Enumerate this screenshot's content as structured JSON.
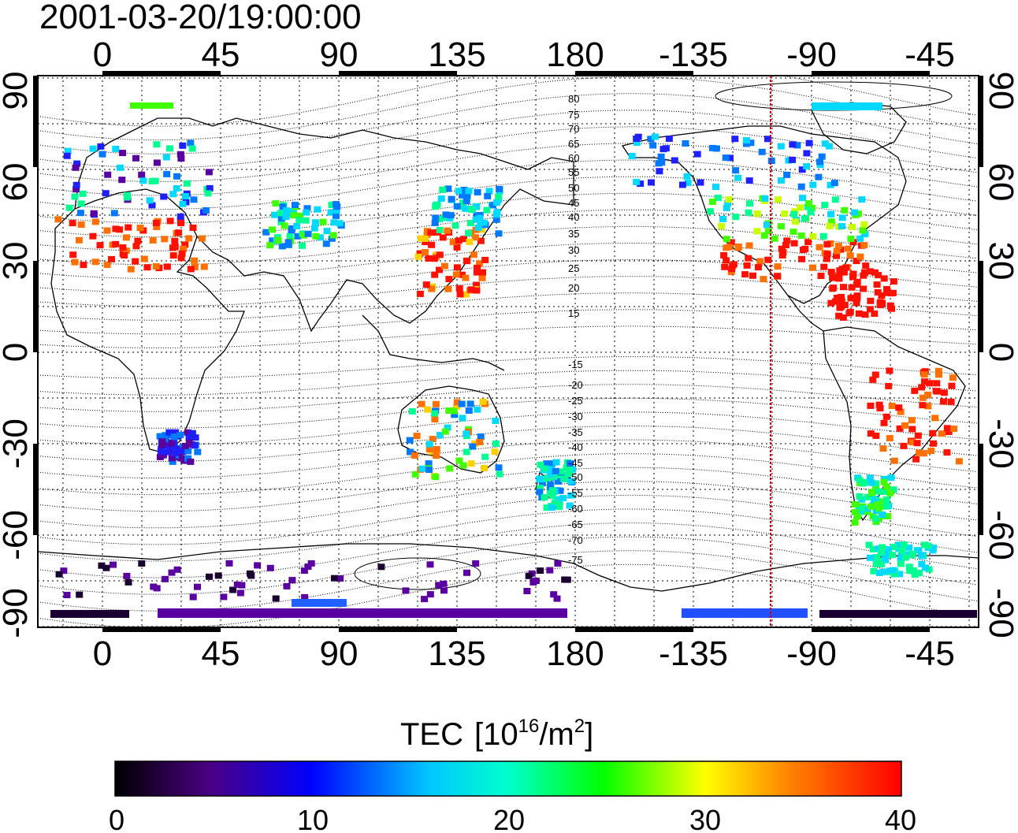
{
  "header": {
    "timestamp": "2001-03-20/19:00:00"
  },
  "axes": {
    "lon_ticks": [
      "0",
      "45",
      "90",
      "135",
      "180",
      "-135",
      "-90",
      "-45"
    ],
    "lat_ticks_left": [
      "90",
      "60",
      "30",
      "0",
      "-30",
      "-60",
      "-90"
    ],
    "lat_ticks_right": [
      "90",
      "60",
      "30",
      "0",
      "-30",
      "-60",
      "-90"
    ]
  },
  "contour_labels": {
    "north": [
      "80",
      "75",
      "70",
      "65",
      "60",
      "55",
      "50",
      "45",
      "40",
      "35",
      "30",
      "25",
      "20",
      "15"
    ],
    "south": [
      "-15",
      "-20",
      "-25",
      "-30",
      "-35",
      "-40",
      "-45",
      "-50",
      "-55",
      "-60",
      "-65",
      "-70",
      "-75"
    ]
  },
  "colorbar": {
    "title": "TEC",
    "unit_base": "[10",
    "unit_exp": "16",
    "unit_mid": "/m",
    "unit_exp2": "2",
    "unit_close": "]",
    "ticks": [
      "0",
      "10",
      "20",
      "30",
      "40"
    ],
    "range": [
      0,
      40
    ],
    "colors": [
      "#000000",
      "#5a0096",
      "#0000ff",
      "#00ffff",
      "#00ff00",
      "#ffff00",
      "#ff8000",
      "#ff0000"
    ]
  },
  "marker": {
    "longitude": -105,
    "color": "#ff0000"
  }
}
